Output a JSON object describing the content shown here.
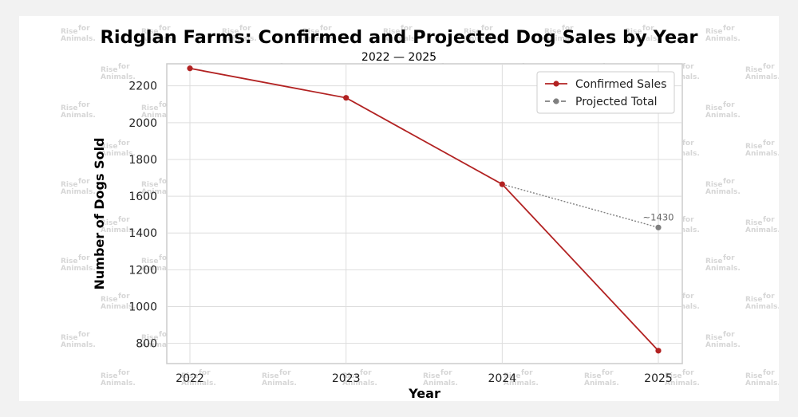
{
  "chart_data": {
    "type": "line",
    "title": "Ridglan Farms: Confirmed and Projected Dog Sales by Year",
    "subtitle": "2022 — 2025",
    "xlabel": "Year",
    "ylabel": "Number of Dogs Sold",
    "categories": [
      "2022",
      "2023",
      "2024",
      "2025"
    ],
    "yticks": [
      800,
      1000,
      1200,
      1400,
      1600,
      1800,
      2000,
      2200
    ],
    "ylim": [
      690,
      2320
    ],
    "grid": true,
    "legend_position": "top-right",
    "series": [
      {
        "name": "Confirmed Sales",
        "style": "solid",
        "color": "#b22222",
        "values": [
          2295,
          2135,
          1665,
          760
        ]
      },
      {
        "name": "Projected Total",
        "style": "dotted",
        "color": "#808080",
        "x": [
          "2024",
          "2025"
        ],
        "values": [
          1665,
          1430
        ]
      }
    ],
    "annotations": [
      {
        "text": "~1430",
        "x": "2025",
        "y": 1430
      }
    ]
  },
  "watermark": {
    "line1": "Rise",
    "line1_sup": "for",
    "line2": "Animals."
  }
}
